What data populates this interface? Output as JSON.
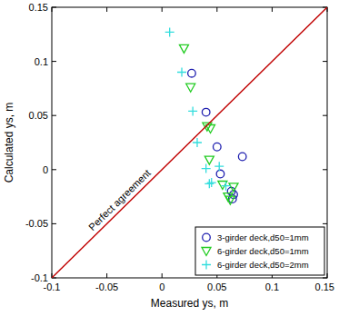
{
  "chart_data": {
    "type": "scatter",
    "x_label": "Measured ys, m",
    "y_label": "Calculated ys, m",
    "xlim": [
      -0.1,
      0.15
    ],
    "ylim": [
      -0.1,
      0.15
    ],
    "xticks": [
      -0.1,
      -0.05,
      0,
      0.05,
      0.1,
      0.15
    ],
    "yticks": [
      -0.1,
      -0.05,
      0,
      0.05,
      0.1,
      0.15
    ],
    "grid": false,
    "legend": "lower right",
    "series": [
      {
        "name": "3-girder deck,d50=1mm",
        "color": "#2020b0",
        "marker": "circle",
        "x": [
          0.027,
          0.04,
          0.05,
          0.053,
          0.063,
          0.065,
          0.064,
          0.073
        ],
        "values": [
          0.089,
          0.053,
          0.021,
          -0.004,
          -0.02,
          -0.023,
          -0.027,
          0.012
        ]
      },
      {
        "name": "6-girder deck,d50=1mm",
        "color": "#22cc22",
        "marker": "triangle-down",
        "x": [
          0.02,
          0.026,
          0.041,
          0.044,
          0.043,
          0.055,
          0.06,
          0.062,
          0.065
        ],
        "values": [
          0.112,
          0.076,
          0.04,
          0.038,
          0.009,
          -0.014,
          -0.025,
          -0.028,
          -0.016
        ]
      },
      {
        "name": "6-girder deck,d50=2mm",
        "color": "#33dddd",
        "marker": "plus",
        "x": [
          0.007,
          0.018,
          0.028,
          0.032,
          0.04,
          0.045,
          0.052,
          0.058,
          0.043
        ],
        "values": [
          0.127,
          0.09,
          0.054,
          0.025,
          0.001,
          -0.012,
          0.003,
          -0.015,
          -0.013
        ]
      },
      {
        "name": "Perfect agreement",
        "color": "#c00000",
        "type": "line",
        "line_style": "solid",
        "x": [
          -0.1,
          0.15
        ],
        "values": [
          -0.1,
          0.15
        ]
      }
    ]
  }
}
